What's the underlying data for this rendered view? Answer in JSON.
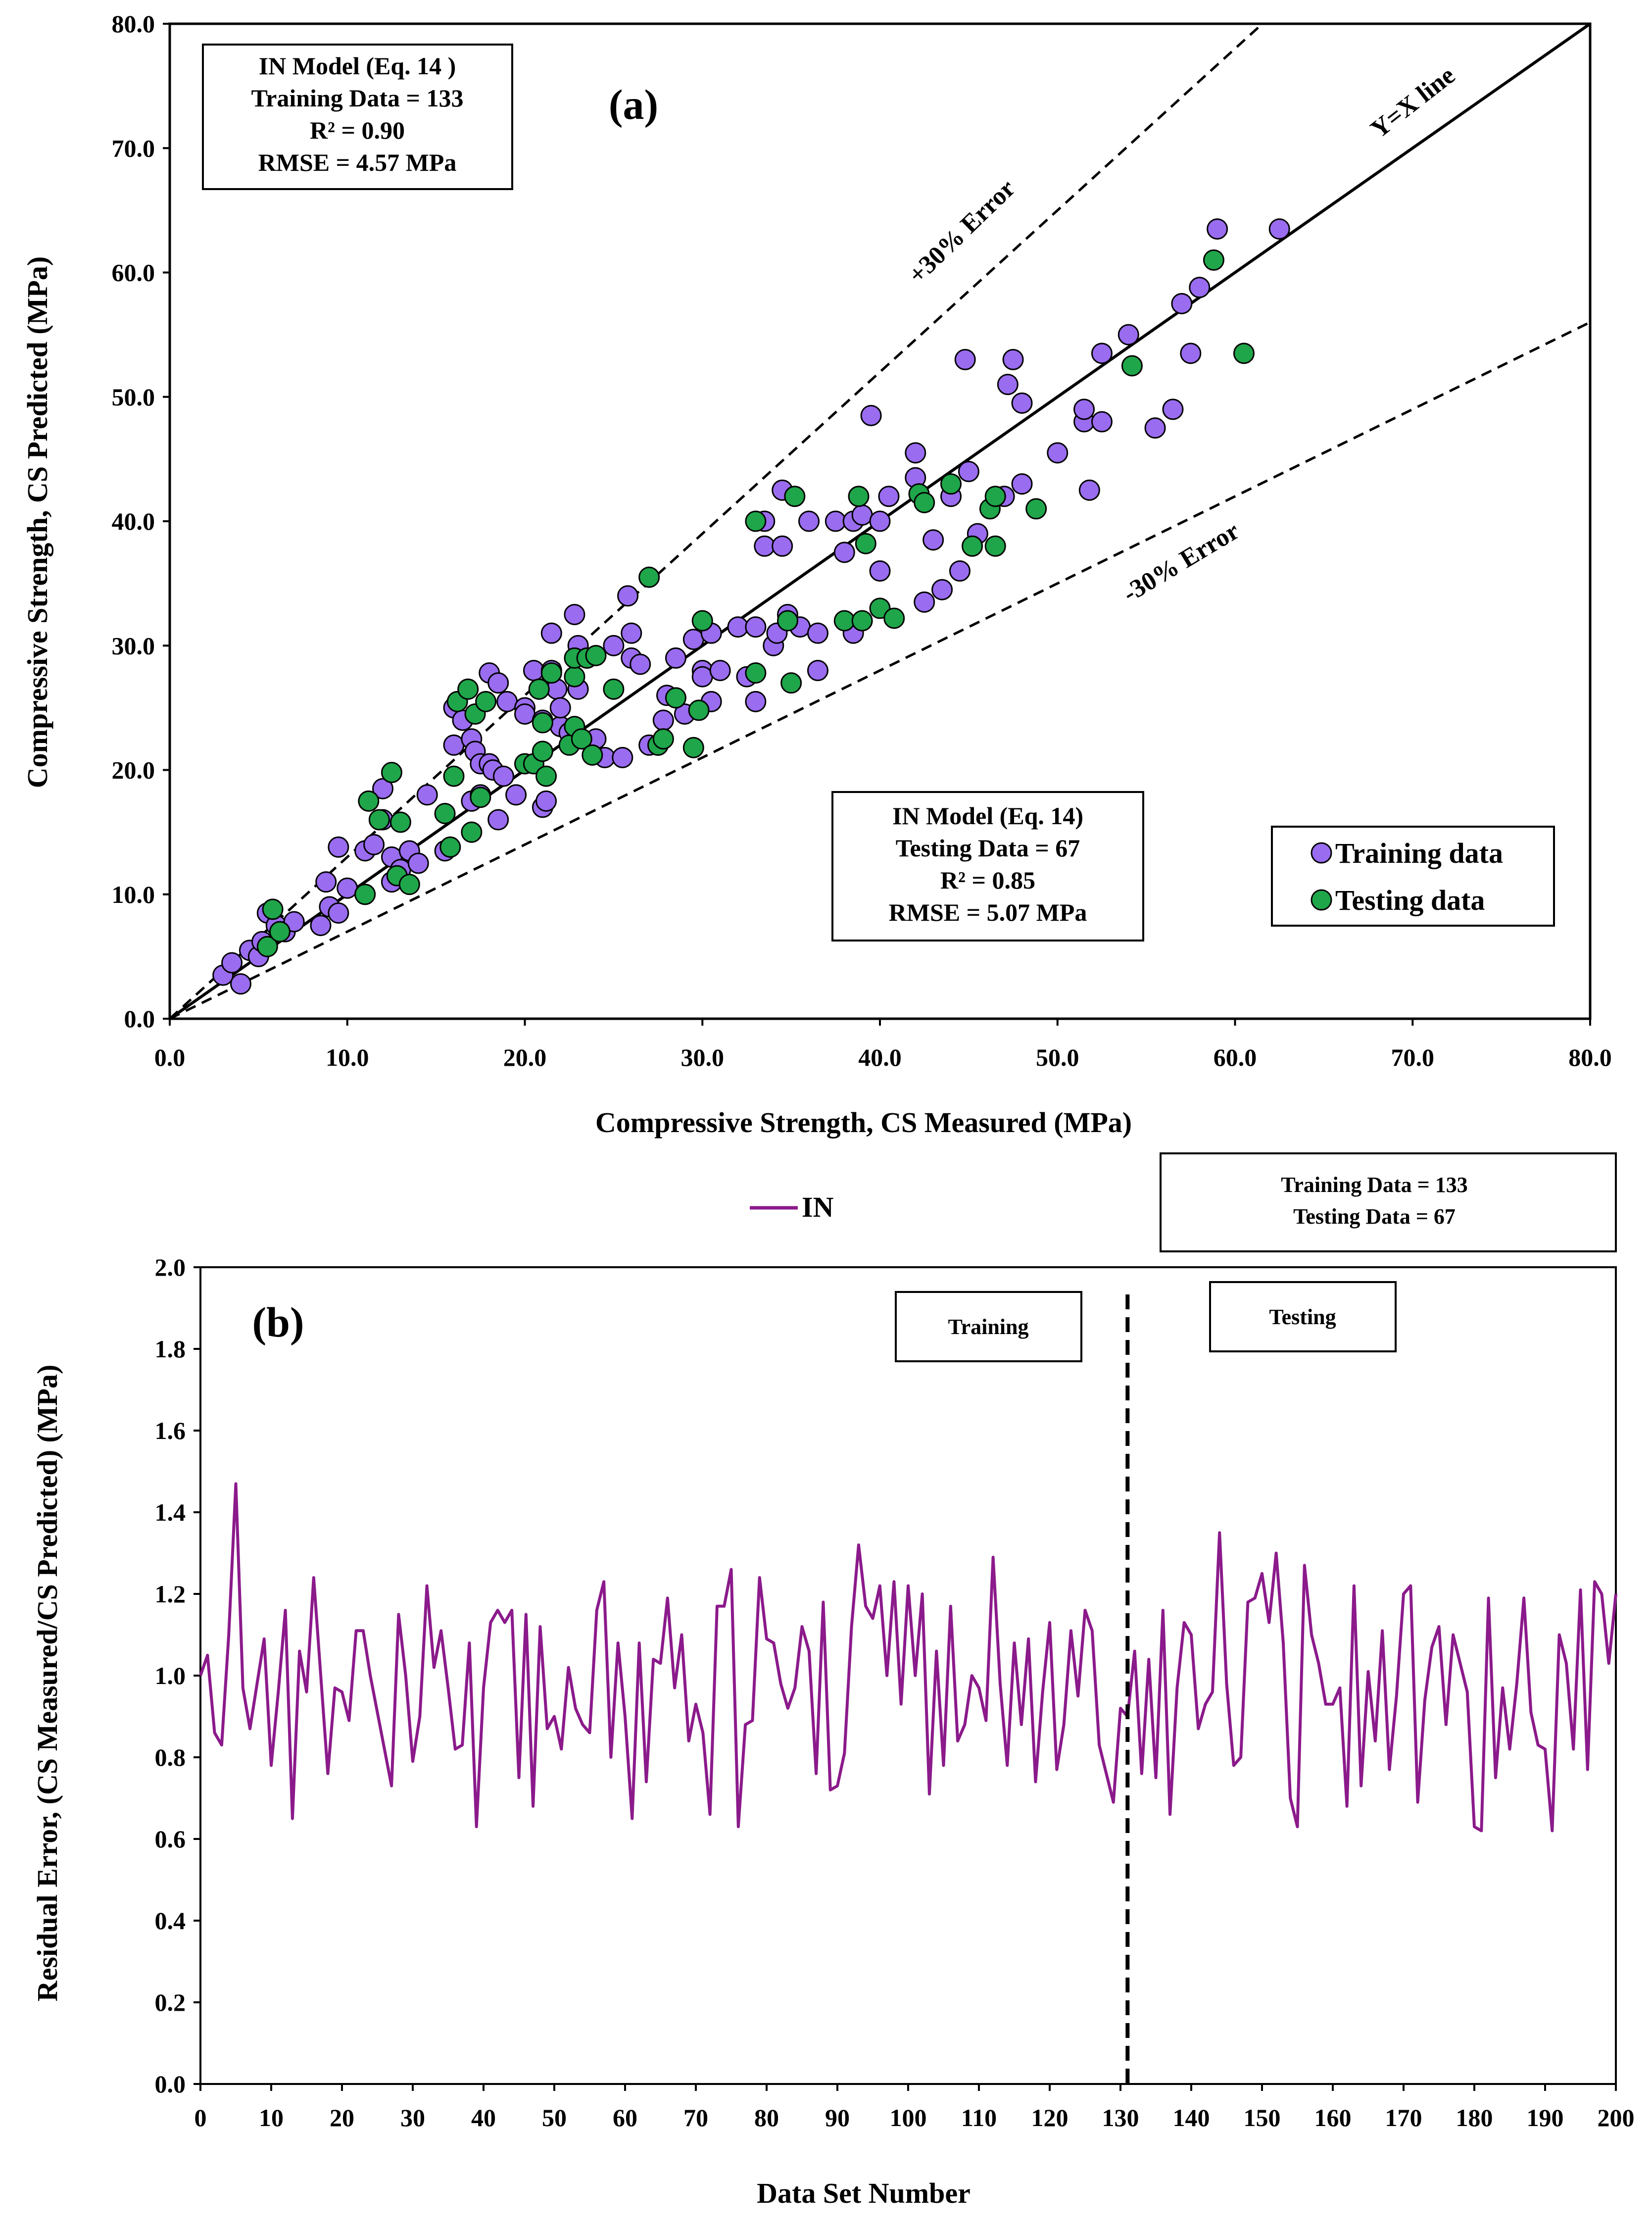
{
  "colors": {
    "training_fill": "#9a6cf0",
    "testing_fill": "#1fa64a",
    "residual_line": "#8b1a8b",
    "marker_stroke": "#000000"
  },
  "chart_data": [
    {
      "panel": "(a)",
      "type": "scatter",
      "xlabel": "Compressive Strength, CS Measured (MPa)",
      "ylabel": "Compressive  Strength, CS Predicted (MPa)",
      "xlim": [
        0,
        80
      ],
      "ylim": [
        0,
        80
      ],
      "xticks": [
        "0.0",
        "10.0",
        "20.0",
        "30.0",
        "40.0",
        "50.0",
        "60.0",
        "70.0",
        "80.0"
      ],
      "yticks": [
        "0.0",
        "10.0",
        "20.0",
        "30.0",
        "40.0",
        "50.0",
        "60.0",
        "70.0",
        "80.0"
      ],
      "lines": [
        {
          "label": "Y=X line",
          "slope": 1.0,
          "style": "solid"
        },
        {
          "label": "+30% Error",
          "slope": 1.3,
          "style": "dashed"
        },
        {
          "label": "-30% Error",
          "slope": 0.7,
          "style": "dashed"
        }
      ],
      "training_box": [
        "IN Model (Eq. 14 )",
        "Training Data = 133",
        "R² =  0.90",
        "RMSE = 4.57 MPa"
      ],
      "testing_box": [
        "IN Model (Eq. 14)",
        "Testing Data = 67",
        "R² =  0.85",
        "RMSE = 5.07 MPa"
      ],
      "legend": [
        "Training data",
        "Testing data"
      ],
      "legend_position": "bottom-right",
      "series": [
        {
          "name": "Training data",
          "points": [
            [
              3.0,
              3.5
            ],
            [
              3.5,
              4.5
            ],
            [
              4.0,
              2.8
            ],
            [
              4.5,
              5.5
            ],
            [
              5.0,
              5.0
            ],
            [
              5.2,
              6.2
            ],
            [
              5.5,
              8.5
            ],
            [
              6.0,
              7.5
            ],
            [
              6.5,
              7.0
            ],
            [
              7.0,
              7.8
            ],
            [
              8.5,
              7.5
            ],
            [
              8.8,
              11.0
            ],
            [
              9.0,
              9.0
            ],
            [
              9.5,
              13.8
            ],
            [
              9.5,
              8.5
            ],
            [
              10.0,
              10.5
            ],
            [
              11.0,
              13.5
            ],
            [
              11.0,
              10.0
            ],
            [
              11.5,
              14.0
            ],
            [
              12.0,
              16.0
            ],
            [
              12.0,
              18.5
            ],
            [
              12.5,
              11.0
            ],
            [
              12.5,
              13.0
            ],
            [
              13.0,
              12.0
            ],
            [
              13.5,
              13.5
            ],
            [
              14.0,
              12.5
            ],
            [
              14.5,
              18.0
            ],
            [
              15.5,
              13.5
            ],
            [
              16.0,
              22.0
            ],
            [
              16.0,
              25.0
            ],
            [
              16.5,
              24.0
            ],
            [
              17.0,
              17.5
            ],
            [
              17.0,
              22.5
            ],
            [
              17.2,
              21.5
            ],
            [
              17.5,
              20.5
            ],
            [
              17.5,
              18.0
            ],
            [
              18.0,
              27.8
            ],
            [
              18.0,
              20.5
            ],
            [
              18.2,
              20.0
            ],
            [
              18.5,
              16.0
            ],
            [
              18.5,
              27.0
            ],
            [
              18.8,
              19.5
            ],
            [
              19.0,
              25.5
            ],
            [
              19.5,
              18.0
            ],
            [
              20.0,
              25.0
            ],
            [
              20.0,
              24.5
            ],
            [
              20.5,
              28.0
            ],
            [
              21.0,
              24.0
            ],
            [
              21.0,
              17.0
            ],
            [
              21.2,
              17.5
            ],
            [
              21.5,
              28.0
            ],
            [
              21.5,
              31.0
            ],
            [
              21.8,
              26.5
            ],
            [
              22.0,
              23.5
            ],
            [
              22.0,
              25.0
            ],
            [
              22.5,
              23.0
            ],
            [
              22.8,
              32.5
            ],
            [
              23.0,
              30.0
            ],
            [
              23.0,
              26.5
            ],
            [
              23.5,
              29.0
            ],
            [
              24.0,
              22.5
            ],
            [
              24.5,
              21.0
            ],
            [
              25.0,
              30.0
            ],
            [
              25.5,
              21.0
            ],
            [
              25.8,
              34.0
            ],
            [
              26.0,
              31.0
            ],
            [
              26.0,
              29.0
            ],
            [
              26.5,
              28.5
            ],
            [
              27.0,
              22.0
            ],
            [
              27.5,
              22.0
            ],
            [
              27.8,
              24.0
            ],
            [
              28.0,
              26.0
            ],
            [
              28.5,
              29.0
            ],
            [
              29.0,
              24.5
            ],
            [
              29.5,
              30.5
            ],
            [
              30.0,
              28.0
            ],
            [
              30.0,
              27.5
            ],
            [
              30.5,
              25.5
            ],
            [
              30.5,
              31.0
            ],
            [
              31.0,
              28.0
            ],
            [
              32.0,
              31.5
            ],
            [
              32.5,
              27.5
            ],
            [
              33.0,
              25.5
            ],
            [
              33.0,
              31.5
            ],
            [
              33.5,
              40.0
            ],
            [
              33.5,
              38.0
            ],
            [
              34.0,
              30.0
            ],
            [
              34.2,
              31.0
            ],
            [
              34.5,
              38.0
            ],
            [
              34.5,
              42.5
            ],
            [
              34.8,
              32.5
            ],
            [
              35.5,
              31.5
            ],
            [
              36.0,
              40.0
            ],
            [
              36.5,
              31.0
            ],
            [
              36.5,
              28.0
            ],
            [
              37.5,
              40.0
            ],
            [
              38.0,
              37.5
            ],
            [
              38.5,
              31.0
            ],
            [
              38.5,
              40.0
            ],
            [
              39.0,
              40.5
            ],
            [
              39.5,
              48.5
            ],
            [
              40.0,
              36.0
            ],
            [
              40.0,
              40.0
            ],
            [
              40.5,
              42.0
            ],
            [
              42.0,
              43.5
            ],
            [
              42.0,
              45.5
            ],
            [
              42.5,
              33.5
            ],
            [
              43.0,
              38.5
            ],
            [
              43.5,
              34.5
            ],
            [
              44.0,
              42.0
            ],
            [
              44.5,
              36.0
            ],
            [
              44.8,
              53.0
            ],
            [
              45.0,
              44.0
            ],
            [
              45.5,
              39.0
            ],
            [
              47.0,
              42.0
            ],
            [
              47.2,
              51.0
            ],
            [
              47.5,
              53.0
            ],
            [
              48.0,
              49.5
            ],
            [
              48.0,
              43.0
            ],
            [
              50.0,
              45.5
            ],
            [
              51.5,
              48.0
            ],
            [
              51.5,
              49.0
            ],
            [
              51.8,
              42.5
            ],
            [
              52.5,
              48.0
            ],
            [
              52.5,
              53.5
            ],
            [
              54.0,
              55.0
            ],
            [
              55.5,
              47.5
            ],
            [
              56.5,
              49.0
            ],
            [
              57.0,
              57.5
            ],
            [
              57.5,
              53.5
            ],
            [
              58.0,
              58.8
            ],
            [
              59.0,
              63.5
            ],
            [
              62.5,
              63.5
            ]
          ]
        },
        {
          "name": "Testing data",
          "points": [
            [
              5.5,
              5.8
            ],
            [
              5.8,
              8.8
            ],
            [
              6.2,
              7.0
            ],
            [
              11.0,
              10.0
            ],
            [
              11.2,
              17.5
            ],
            [
              11.8,
              16.0
            ],
            [
              12.5,
              19.8
            ],
            [
              12.8,
              11.5
            ],
            [
              13.0,
              15.8
            ],
            [
              13.5,
              10.8
            ],
            [
              15.5,
              16.5
            ],
            [
              15.8,
              13.8
            ],
            [
              16.0,
              19.5
            ],
            [
              16.2,
              25.5
            ],
            [
              16.8,
              26.5
            ],
            [
              17.0,
              15.0
            ],
            [
              17.2,
              24.5
            ],
            [
              17.5,
              17.8
            ],
            [
              17.8,
              25.5
            ],
            [
              20.0,
              20.5
            ],
            [
              20.5,
              20.5
            ],
            [
              20.8,
              26.5
            ],
            [
              21.0,
              21.5
            ],
            [
              21.0,
              23.8
            ],
            [
              21.2,
              19.5
            ],
            [
              21.5,
              27.8
            ],
            [
              22.5,
              22.0
            ],
            [
              22.8,
              27.5
            ],
            [
              22.8,
              29.0
            ],
            [
              22.8,
              23.5
            ],
            [
              23.2,
              22.5
            ],
            [
              23.5,
              29.0
            ],
            [
              23.8,
              21.2
            ],
            [
              24.0,
              29.2
            ],
            [
              25.0,
              26.5
            ],
            [
              27.0,
              35.5
            ],
            [
              27.5,
              22.0
            ],
            [
              27.8,
              22.5
            ],
            [
              28.5,
              25.8
            ],
            [
              29.5,
              21.8
            ],
            [
              29.8,
              24.8
            ],
            [
              30.0,
              32.0
            ],
            [
              33.0,
              27.8
            ],
            [
              33.0,
              40.0
            ],
            [
              34.8,
              32.0
            ],
            [
              35.0,
              27.0
            ],
            [
              35.2,
              42.0
            ],
            [
              38.0,
              32.0
            ],
            [
              38.8,
              42.0
            ],
            [
              39.0,
              32.0
            ],
            [
              39.2,
              38.2
            ],
            [
              40.0,
              33.0
            ],
            [
              40.8,
              32.2
            ],
            [
              42.2,
              42.2
            ],
            [
              42.5,
              41.5
            ],
            [
              44.0,
              43.0
            ],
            [
              45.2,
              38.0
            ],
            [
              46.2,
              41.0
            ],
            [
              46.5,
              42.0
            ],
            [
              46.5,
              38.0
            ],
            [
              48.8,
              41.0
            ],
            [
              54.2,
              52.5
            ],
            [
              58.8,
              61.0
            ],
            [
              60.5,
              53.5
            ]
          ]
        }
      ]
    },
    {
      "panel": "(b)",
      "type": "line",
      "xlabel": "Data Set Number",
      "ylabel": "Residual Error,  (CS Measured/CS Predicted) (MPa)",
      "xlim": [
        0,
        200
      ],
      "ylim": [
        0.0,
        2.0
      ],
      "xticks": [
        "0",
        "10",
        "20",
        "30",
        "40",
        "50",
        "60",
        "70",
        "80",
        "90",
        "100",
        "110",
        "120",
        "130",
        "140",
        "150",
        "160",
        "170",
        "180",
        "190",
        "200"
      ],
      "yticks": [
        "0.0",
        "0.2",
        "0.4",
        "0.6",
        "0.8",
        "1.0",
        "1.2",
        "1.4",
        "1.6",
        "1.8",
        "2.0"
      ],
      "legend": [
        "IN"
      ],
      "legend_position": "top",
      "info_box": [
        "Training Data = 133",
        "Testing Data = 67"
      ],
      "annotations": [
        "Training",
        "Testing"
      ],
      "split_at": 131,
      "series": [
        {
          "name": "IN",
          "values": [
            1.0,
            1.05,
            0.86,
            0.83,
            1.1,
            1.47,
            0.97,
            0.87,
            0.98,
            1.09,
            0.78,
            0.96,
            1.16,
            0.65,
            1.06,
            0.96,
            1.24,
            1.0,
            0.76,
            0.97,
            0.96,
            0.89,
            1.11,
            1.11,
            1.0,
            0.91,
            0.82,
            0.73,
            1.15,
            1.0,
            0.79,
            0.9,
            1.22,
            1.02,
            1.11,
            0.97,
            0.82,
            0.83,
            1.08,
            0.63,
            0.97,
            1.13,
            1.16,
            1.13,
            1.16,
            0.75,
            1.15,
            0.68,
            1.12,
            0.87,
            0.9,
            0.82,
            1.02,
            0.92,
            0.88,
            0.86,
            1.16,
            1.23,
            0.8,
            1.08,
            0.9,
            0.65,
            1.08,
            0.74,
            1.04,
            1.03,
            1.19,
            0.97,
            1.1,
            0.84,
            0.93,
            0.86,
            0.66,
            1.17,
            1.17,
            1.26,
            0.63,
            0.88,
            0.89,
            1.24,
            1.09,
            1.08,
            0.98,
            0.92,
            0.97,
            1.12,
            1.06,
            0.76,
            1.18,
            0.72,
            0.73,
            0.81,
            1.12,
            1.32,
            1.17,
            1.14,
            1.22,
            1.0,
            1.23,
            0.93,
            1.22,
            1.0,
            1.2,
            0.71,
            1.06,
            0.78,
            1.17,
            0.84,
            0.88,
            1.0,
            0.97,
            0.89,
            1.29,
            0.98,
            0.78,
            1.08,
            0.88,
            1.09,
            0.74,
            0.96,
            1.13,
            0.77,
            0.88,
            1.11,
            0.95,
            1.16,
            1.11,
            0.83,
            0.76,
            0.69,
            0.92,
            0.9,
            1.06,
            0.76,
            1.04,
            0.75,
            1.16,
            0.66,
            0.97,
            1.13,
            1.1,
            0.87,
            0.93,
            0.96,
            1.35,
            0.98,
            0.78,
            0.8,
            1.18,
            1.19,
            1.25,
            1.13,
            1.3,
            1.08,
            0.7,
            0.63,
            1.27,
            1.1,
            1.03,
            0.93,
            0.93,
            0.97,
            0.68,
            1.22,
            0.73,
            1.01,
            0.84,
            1.11,
            0.77,
            0.95,
            1.2,
            1.22,
            0.69,
            0.94,
            1.07,
            1.12,
            0.88,
            1.1,
            1.03,
            0.96,
            0.63,
            0.62,
            1.19,
            0.75,
            0.97,
            0.82,
            0.98,
            1.19,
            0.91,
            0.83,
            0.82,
            0.62,
            1.1,
            1.03,
            0.82,
            1.21,
            0.77,
            1.23,
            1.2,
            1.03,
            1.2
          ]
        }
      ]
    }
  ]
}
